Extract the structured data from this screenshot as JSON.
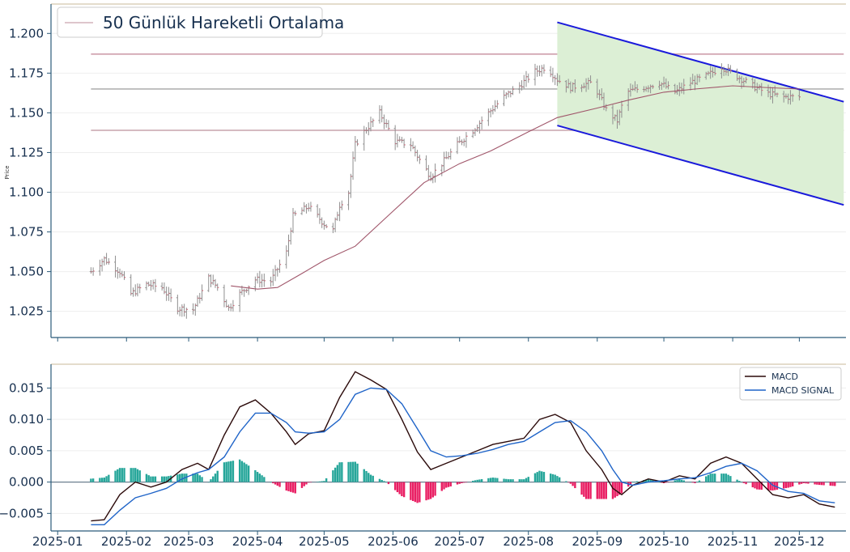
{
  "chart_data": [
    {
      "type": "ohlc",
      "title": "",
      "xlabel": "",
      "ylabel": "Price",
      "xlim": [
        "2024-12-29",
        "2025-12-22"
      ],
      "ylim": [
        1.0085,
        1.2185
      ],
      "y_ticks": [
        1.025,
        1.05,
        1.075,
        1.1,
        1.125,
        1.15,
        1.175,
        1.2
      ],
      "y_tick_labels": [
        "1.025",
        "1.050",
        "1.075",
        "1.100",
        "1.125",
        "1.150",
        "1.175",
        "1.200"
      ],
      "legend": {
        "position": "top-left",
        "entries": [
          "50 Günlük Hareketli Ortalama"
        ]
      },
      "horizontal_levels": [
        {
          "y": 1.187,
          "color": "#d3a8b4"
        },
        {
          "y": 1.165,
          "color": "#bdbdbd"
        },
        {
          "y": 1.139,
          "color": "#cfb0b8"
        }
      ],
      "price_anchors": [
        [
          "2025-01-16",
          1.05
        ],
        [
          "2025-01-22",
          1.058
        ],
        [
          "2025-01-29",
          1.05
        ],
        [
          "2025-02-03",
          1.036
        ],
        [
          "2025-02-10",
          1.042
        ],
        [
          "2025-02-17",
          1.04
        ],
        [
          "2025-02-24",
          1.027
        ],
        [
          "2025-03-03",
          1.026
        ],
        [
          "2025-03-10",
          1.046
        ],
        [
          "2025-03-14",
          1.04
        ],
        [
          "2025-03-19",
          1.027
        ],
        [
          "2025-03-24",
          1.036
        ],
        [
          "2025-03-31",
          1.045
        ],
        [
          "2025-04-07",
          1.044
        ],
        [
          "2025-04-14",
          1.062
        ],
        [
          "2025-04-17",
          1.085
        ],
        [
          "2025-04-24",
          1.091
        ],
        [
          "2025-05-01",
          1.08
        ],
        [
          "2025-05-05",
          1.076
        ],
        [
          "2025-05-08",
          1.092
        ],
        [
          "2025-05-12",
          1.1
        ],
        [
          "2025-05-15",
          1.13
        ],
        [
          "2025-05-19",
          1.138
        ],
        [
          "2025-05-26",
          1.15
        ],
        [
          "2025-06-02",
          1.132
        ],
        [
          "2025-06-09",
          1.13
        ],
        [
          "2025-06-14",
          1.118
        ],
        [
          "2025-06-18",
          1.11
        ],
        [
          "2025-06-23",
          1.118
        ],
        [
          "2025-06-30",
          1.13
        ],
        [
          "2025-07-07",
          1.139
        ],
        [
          "2025-07-14",
          1.15
        ],
        [
          "2025-07-21",
          1.16
        ],
        [
          "2025-07-28",
          1.167
        ],
        [
          "2025-08-04",
          1.176
        ],
        [
          "2025-08-09",
          1.179
        ],
        [
          "2025-08-14",
          1.171
        ],
        [
          "2025-08-20",
          1.166
        ],
        [
          "2025-08-26",
          1.168
        ],
        [
          "2025-08-30",
          1.169
        ],
        [
          "2025-09-05",
          1.152
        ],
        [
          "2025-09-10",
          1.145
        ],
        [
          "2025-09-14",
          1.163
        ],
        [
          "2025-09-22",
          1.166
        ],
        [
          "2025-09-29",
          1.169
        ],
        [
          "2025-10-06",
          1.163
        ],
        [
          "2025-10-13",
          1.169
        ],
        [
          "2025-10-20",
          1.173
        ],
        [
          "2025-10-27",
          1.179
        ],
        [
          "2025-11-03",
          1.173
        ],
        [
          "2025-11-10",
          1.167
        ],
        [
          "2025-11-17",
          1.162
        ],
        [
          "2025-11-24",
          1.16
        ],
        [
          "2025-12-01",
          1.16
        ]
      ],
      "moving_average_50": [
        [
          "2025-03-20",
          1.041
        ],
        [
          "2025-04-01",
          1.039
        ],
        [
          "2025-04-10",
          1.04
        ],
        [
          "2025-04-20",
          1.048
        ],
        [
          "2025-05-01",
          1.057
        ],
        [
          "2025-05-15",
          1.066
        ],
        [
          "2025-06-01",
          1.088
        ],
        [
          "2025-06-15",
          1.106
        ],
        [
          "2025-07-01",
          1.118
        ],
        [
          "2025-07-15",
          1.126
        ],
        [
          "2025-08-01",
          1.138
        ],
        [
          "2025-08-14",
          1.147
        ],
        [
          "2025-09-01",
          1.153
        ],
        [
          "2025-09-15",
          1.158
        ],
        [
          "2025-10-01",
          1.163
        ],
        [
          "2025-10-15",
          1.165
        ],
        [
          "2025-11-01",
          1.167
        ],
        [
          "2025-11-15",
          1.166
        ],
        [
          "2025-12-01",
          1.165
        ]
      ],
      "channel": {
        "upper": [
          [
            "2025-08-14",
            1.207
          ],
          [
            "2025-12-21",
            1.157
          ]
        ],
        "lower": [
          [
            "2025-08-14",
            1.142
          ],
          [
            "2025-12-21",
            1.092
          ]
        ],
        "fill_color": "#dcefd5",
        "line_color": "#1a1adb"
      }
    },
    {
      "type": "line",
      "title": "",
      "xlabel": "",
      "ylabel": "",
      "xlim": [
        "2024-12-29",
        "2025-12-22"
      ],
      "ylim": [
        -0.0078,
        0.0188
      ],
      "y_ticks": [
        -0.005,
        0.0,
        0.005,
        0.01,
        0.015
      ],
      "y_tick_labels": [
        "−0.005",
        "0.000",
        "0.005",
        "0.010",
        "0.015"
      ],
      "x_ticks": [
        "2025-01-01",
        "2025-02-01",
        "2025-03-01",
        "2025-04-01",
        "2025-05-01",
        "2025-06-01",
        "2025-07-01",
        "2025-08-01",
        "2025-09-01",
        "2025-10-01",
        "2025-11-01",
        "2025-12-01"
      ],
      "x_tick_labels": [
        "2025-01",
        "2025-02",
        "2025-03",
        "2025-04",
        "2025-05",
        "2025-06",
        "2025-07",
        "2025-08",
        "2025-09",
        "2025-10",
        "2025-11",
        "2025-12"
      ],
      "legend": {
        "position": "top-right"
      },
      "series": [
        {
          "name": "MACD",
          "color": "#2b0a0a",
          "points": [
            [
              "2025-01-16",
              -0.0062
            ],
            [
              "2025-01-22",
              -0.006
            ],
            [
              "2025-01-29",
              -0.002
            ],
            [
              "2025-02-05",
              0.0
            ],
            [
              "2025-02-12",
              -0.0008
            ],
            [
              "2025-02-19",
              0.0
            ],
            [
              "2025-02-26",
              0.002
            ],
            [
              "2025-03-05",
              0.003
            ],
            [
              "2025-03-10",
              0.002
            ],
            [
              "2025-03-17",
              0.0075
            ],
            [
              "2025-03-24",
              0.012
            ],
            [
              "2025-03-31",
              0.0131
            ],
            [
              "2025-04-07",
              0.011
            ],
            [
              "2025-04-14",
              0.008
            ],
            [
              "2025-04-18",
              0.006
            ],
            [
              "2025-04-24",
              0.0077
            ],
            [
              "2025-05-01",
              0.0082
            ],
            [
              "2025-05-08",
              0.0135
            ],
            [
              "2025-05-15",
              0.0176
            ],
            [
              "2025-05-22",
              0.0163
            ],
            [
              "2025-05-29",
              0.0148
            ],
            [
              "2025-06-05",
              0.01
            ],
            [
              "2025-06-12",
              0.0048
            ],
            [
              "2025-06-18",
              0.002
            ],
            [
              "2025-06-25",
              0.003
            ],
            [
              "2025-07-02",
              0.004
            ],
            [
              "2025-07-09",
              0.005
            ],
            [
              "2025-07-16",
              0.006
            ],
            [
              "2025-07-23",
              0.0065
            ],
            [
              "2025-07-30",
              0.007
            ],
            [
              "2025-08-06",
              0.01
            ],
            [
              "2025-08-13",
              0.0108
            ],
            [
              "2025-08-20",
              0.0095
            ],
            [
              "2025-08-27",
              0.005
            ],
            [
              "2025-09-03",
              0.002
            ],
            [
              "2025-09-08",
              -0.001
            ],
            [
              "2025-09-12",
              -0.002
            ],
            [
              "2025-09-17",
              -0.0005
            ],
            [
              "2025-09-24",
              0.0005
            ],
            [
              "2025-10-01",
              0.0
            ],
            [
              "2025-10-08",
              0.001
            ],
            [
              "2025-10-15",
              0.0005
            ],
            [
              "2025-10-22",
              0.003
            ],
            [
              "2025-10-29",
              0.004
            ],
            [
              "2025-11-05",
              0.003
            ],
            [
              "2025-11-12",
              0.0005
            ],
            [
              "2025-11-19",
              -0.002
            ],
            [
              "2025-11-26",
              -0.0025
            ],
            [
              "2025-12-03",
              -0.002
            ],
            [
              "2025-12-10",
              -0.0035
            ],
            [
              "2025-12-17",
              -0.004
            ]
          ]
        },
        {
          "name": "MACD SIGNAL",
          "color": "#1f64c8",
          "points": [
            [
              "2025-01-16",
              -0.0068
            ],
            [
              "2025-01-22",
              -0.0068
            ],
            [
              "2025-01-29",
              -0.0045
            ],
            [
              "2025-02-05",
              -0.0025
            ],
            [
              "2025-02-12",
              -0.0018
            ],
            [
              "2025-02-19",
              -0.001
            ],
            [
              "2025-02-26",
              0.0005
            ],
            [
              "2025-03-05",
              0.0015
            ],
            [
              "2025-03-10",
              0.002
            ],
            [
              "2025-03-17",
              0.004
            ],
            [
              "2025-03-24",
              0.008
            ],
            [
              "2025-03-31",
              0.011
            ],
            [
              "2025-04-07",
              0.011
            ],
            [
              "2025-04-14",
              0.0095
            ],
            [
              "2025-04-18",
              0.008
            ],
            [
              "2025-04-24",
              0.0078
            ],
            [
              "2025-05-01",
              0.008
            ],
            [
              "2025-05-08",
              0.01
            ],
            [
              "2025-05-15",
              0.014
            ],
            [
              "2025-05-22",
              0.015
            ],
            [
              "2025-05-29",
              0.0148
            ],
            [
              "2025-06-05",
              0.0125
            ],
            [
              "2025-06-12",
              0.0085
            ],
            [
              "2025-06-18",
              0.005
            ],
            [
              "2025-06-25",
              0.004
            ],
            [
              "2025-07-02",
              0.0042
            ],
            [
              "2025-07-09",
              0.0046
            ],
            [
              "2025-07-16",
              0.0052
            ],
            [
              "2025-07-23",
              0.006
            ],
            [
              "2025-07-30",
              0.0065
            ],
            [
              "2025-08-06",
              0.008
            ],
            [
              "2025-08-13",
              0.0095
            ],
            [
              "2025-08-20",
              0.0098
            ],
            [
              "2025-08-27",
              0.008
            ],
            [
              "2025-09-03",
              0.005
            ],
            [
              "2025-09-08",
              0.002
            ],
            [
              "2025-09-12",
              0.0
            ],
            [
              "2025-09-17",
              -0.0005
            ],
            [
              "2025-09-24",
              0.0
            ],
            [
              "2025-10-01",
              0.0002
            ],
            [
              "2025-10-08",
              0.0005
            ],
            [
              "2025-10-15",
              0.0007
            ],
            [
              "2025-10-22",
              0.0015
            ],
            [
              "2025-10-29",
              0.0025
            ],
            [
              "2025-11-05",
              0.003
            ],
            [
              "2025-11-12",
              0.0018
            ],
            [
              "2025-11-19",
              -0.0005
            ],
            [
              "2025-11-26",
              -0.0015
            ],
            [
              "2025-12-03",
              -0.0018
            ],
            [
              "2025-12-10",
              -0.003
            ],
            [
              "2025-12-17",
              -0.0033
            ]
          ]
        }
      ],
      "histogram": {
        "positive_color": "#26a69a",
        "negative_color": "#e91e63"
      }
    }
  ]
}
